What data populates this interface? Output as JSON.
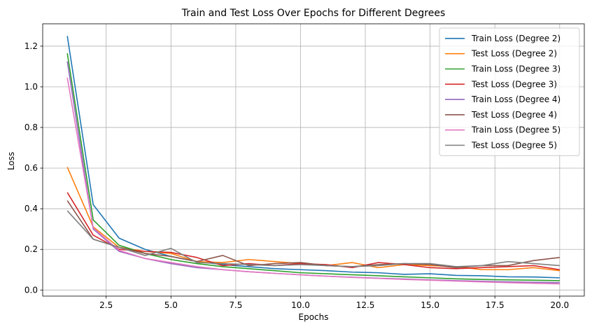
{
  "chart_data": {
    "type": "line",
    "title": "Train and Test Loss Over Epochs for Different Degrees",
    "xlabel": "Epochs",
    "ylabel": "Loss",
    "xlim": [
      0.05,
      20.95
    ],
    "ylim": [
      -0.03,
      1.31
    ],
    "xticks": [
      2.5,
      5.0,
      7.5,
      10.0,
      12.5,
      15.0,
      17.5,
      20.0
    ],
    "xtick_labels": [
      "2.5",
      "5.0",
      "7.5",
      "10.0",
      "12.5",
      "15.0",
      "17.5",
      "20.0"
    ],
    "yticks": [
      0.0,
      0.2,
      0.4,
      0.6,
      0.8,
      1.0,
      1.2
    ],
    "ytick_labels": [
      "0.0",
      "0.2",
      "0.4",
      "0.6",
      "0.8",
      "1.0",
      "1.2"
    ],
    "grid": true,
    "legend_position": "top-right",
    "x": [
      1,
      2,
      3,
      4,
      5,
      6,
      7,
      8,
      9,
      10,
      11,
      12,
      13,
      14,
      15,
      16,
      17,
      18,
      19,
      20
    ],
    "series": [
      {
        "name": "Train Loss (Degree 2)",
        "color": "#1f77b4",
        "values": [
          1.25,
          0.42,
          0.255,
          0.2,
          0.165,
          0.14,
          0.125,
          0.115,
          0.105,
          0.1,
          0.095,
          0.088,
          0.085,
          0.077,
          0.08,
          0.072,
          0.07,
          0.065,
          0.064,
          0.06
        ]
      },
      {
        "name": "Test Loss (Degree 2)",
        "color": "#ff7f0e",
        "values": [
          0.605,
          0.31,
          0.21,
          0.19,
          0.18,
          0.14,
          0.135,
          0.15,
          0.14,
          0.13,
          0.12,
          0.135,
          0.11,
          0.125,
          0.12,
          0.115,
          0.1,
          0.1,
          0.11,
          0.095
        ]
      },
      {
        "name": "Train Loss (Degree 3)",
        "color": "#2ca02c",
        "values": [
          1.165,
          0.345,
          0.22,
          0.18,
          0.15,
          0.13,
          0.115,
          0.105,
          0.095,
          0.085,
          0.08,
          0.075,
          0.07,
          0.065,
          0.06,
          0.055,
          0.052,
          0.05,
          0.048,
          0.046
        ]
      },
      {
        "name": "Test Loss (Degree 3)",
        "color": "#d62728",
        "values": [
          0.48,
          0.27,
          0.2,
          0.19,
          0.185,
          0.16,
          0.12,
          0.13,
          0.12,
          0.13,
          0.125,
          0.11,
          0.135,
          0.125,
          0.11,
          0.105,
          0.11,
          0.115,
          0.12,
          0.1
        ]
      },
      {
        "name": "Train Loss (Degree 4)",
        "color": "#9467bd",
        "values": [
          1.125,
          0.3,
          0.19,
          0.155,
          0.13,
          0.11,
          0.1,
          0.09,
          0.082,
          0.075,
          0.068,
          0.063,
          0.058,
          0.054,
          0.05,
          0.046,
          0.043,
          0.04,
          0.038,
          0.036
        ]
      },
      {
        "name": "Test Loss (Degree 4)",
        "color": "#8c564b",
        "values": [
          0.44,
          0.25,
          0.21,
          0.18,
          0.165,
          0.14,
          0.17,
          0.12,
          0.13,
          0.135,
          0.12,
          0.115,
          0.125,
          0.13,
          0.125,
          0.11,
          0.12,
          0.12,
          0.145,
          0.16
        ]
      },
      {
        "name": "Train Loss (Degree 5)",
        "color": "#e377c2",
        "values": [
          1.045,
          0.305,
          0.195,
          0.155,
          0.135,
          0.115,
          0.1,
          0.09,
          0.082,
          0.075,
          0.068,
          0.062,
          0.057,
          0.052,
          0.048,
          0.044,
          0.04,
          0.036,
          0.033,
          0.03
        ]
      },
      {
        "name": "Test Loss (Degree 5)",
        "color": "#7f7f7f",
        "values": [
          0.39,
          0.25,
          0.21,
          0.17,
          0.205,
          0.135,
          0.13,
          0.125,
          0.12,
          0.125,
          0.12,
          0.115,
          0.12,
          0.13,
          0.13,
          0.115,
          0.12,
          0.14,
          0.13,
          0.12
        ]
      }
    ]
  }
}
